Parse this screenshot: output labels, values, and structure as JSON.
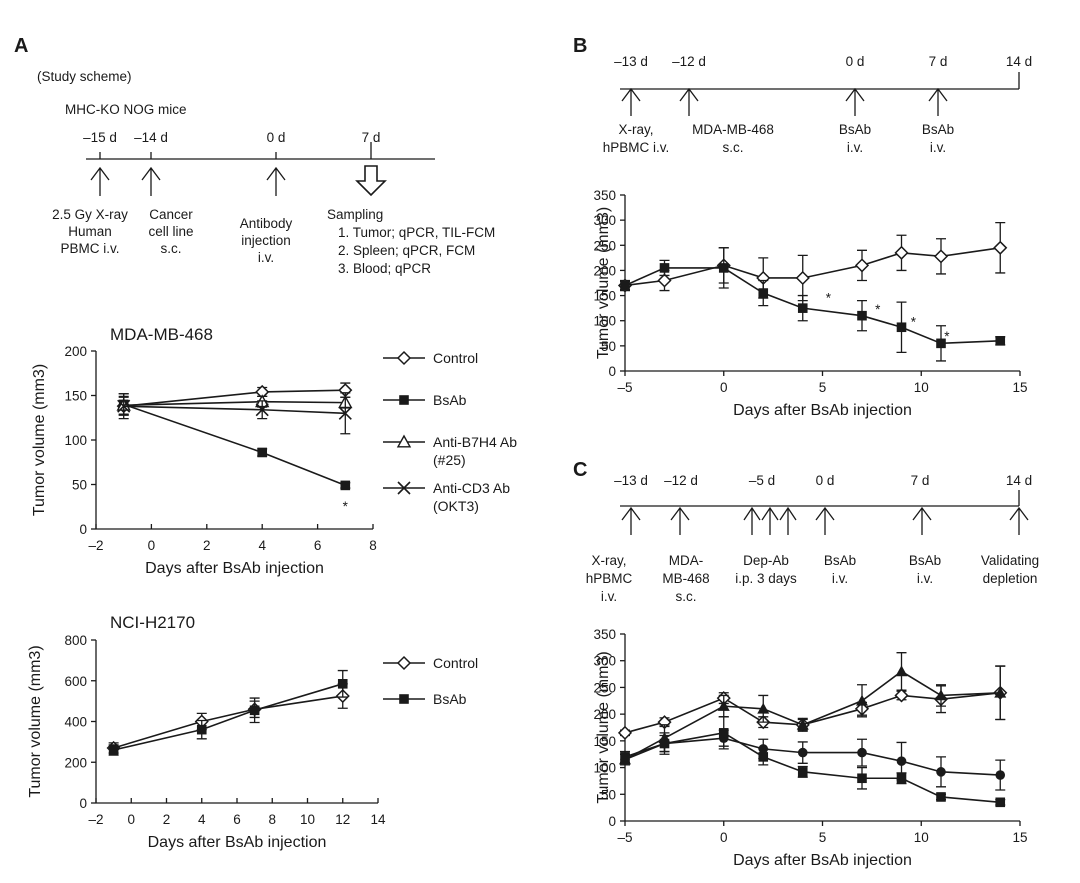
{
  "panels": {
    "a": "A",
    "b": "B",
    "c": "C"
  },
  "scheme_a": {
    "title": "(Study scheme)",
    "mice": "MHC-KO NOG mice",
    "days": [
      "–15 d",
      "–14 d",
      "0 d",
      "7 d"
    ],
    "events": [
      [
        "2.5 Gy X-ray",
        "Human",
        "PBMC i.v."
      ],
      [
        "Cancer",
        "cell line",
        "s.c."
      ],
      [
        "Antibody",
        "injection",
        "i.v."
      ],
      [
        "Sampling",
        "1. Tumor; qPCR, TIL-FCM",
        "2. Spleen; qPCR, FCM",
        "3. Blood; qPCR"
      ]
    ]
  },
  "scheme_b": {
    "days": [
      "–13 d",
      "–12 d",
      "0 d",
      "7 d",
      "14 d"
    ],
    "events": [
      [
        "X-ray,",
        "hPBMC i.v."
      ],
      [
        "MDA-MB-468",
        "s.c."
      ],
      [
        "BsAb",
        "i.v."
      ],
      [
        "BsAb",
        "i.v."
      ]
    ]
  },
  "scheme_c": {
    "days": [
      "–13 d",
      "–12 d",
      "–5 d",
      "0 d",
      "7 d",
      "14 d"
    ],
    "events": [
      [
        "X-ray,",
        "hPBMC",
        "i.v."
      ],
      [
        "MDA-",
        "MB-468",
        "s.c."
      ],
      [
        "Dep-Ab",
        "i.p. 3 days"
      ],
      [
        "BsAb",
        "i.v."
      ],
      [
        "BsAb",
        "i.v."
      ],
      [
        "Validating",
        "depletion"
      ]
    ]
  },
  "chart_data": [
    {
      "id": "a1",
      "type": "line",
      "title": "MDA-MB-468",
      "xlabel": "Days after BsAb injection",
      "ylabel": "Tumor volume (mm3)",
      "xlim": [
        -2,
        8
      ],
      "ylim": [
        0,
        200
      ],
      "xticks": [
        "–2",
        "0",
        "2",
        "4",
        "6",
        "8"
      ],
      "yticks": [
        "0",
        "50",
        "100",
        "150",
        "200"
      ],
      "legend": "right",
      "series": [
        {
          "name": "Control",
          "marker": "diamond-open",
          "x": [
            -1,
            4,
            7
          ],
          "y": [
            138,
            154,
            156
          ],
          "err": [
            14,
            5,
            8
          ]
        },
        {
          "name": "BsAb",
          "marker": "square-filled",
          "x": [
            -1,
            4,
            7
          ],
          "y": [
            140,
            86,
            49
          ],
          "err": [
            12,
            4,
            3
          ]
        },
        {
          "name": "Anti-B7H4 Ab (#25)",
          "marker": "triangle-open",
          "x": [
            -1,
            4,
            7
          ],
          "y": [
            139,
            143,
            142
          ],
          "err": [
            10,
            6,
            6
          ]
        },
        {
          "name": "Anti-CD3 Ab (OKT3)",
          "marker": "x",
          "x": [
            -1,
            4,
            7
          ],
          "y": [
            138,
            134,
            130
          ],
          "err": [
            10,
            10,
            23
          ]
        }
      ],
      "annotations": [
        {
          "text": "*",
          "x": 7,
          "y": 27
        }
      ]
    },
    {
      "id": "a2",
      "type": "line",
      "title": "NCI-H2170",
      "xlabel": "Days after BsAb injection",
      "ylabel": "Tumor volume (mm3)",
      "xlim": [
        -2,
        14
      ],
      "ylim": [
        0,
        800
      ],
      "xticks": [
        "–2",
        "0",
        "2",
        "4",
        "6",
        "8",
        "10",
        "12",
        "14"
      ],
      "yticks": [
        "0",
        "200",
        "400",
        "600",
        "800"
      ],
      "legend": "right",
      "series": [
        {
          "name": "Control",
          "marker": "diamond-open",
          "x": [
            -1,
            4,
            7,
            12
          ],
          "y": [
            270,
            400,
            460,
            525
          ],
          "err": [
            25,
            40,
            40,
            60
          ]
        },
        {
          "name": "BsAb",
          "marker": "square-filled",
          "x": [
            -1,
            4,
            7,
            12
          ],
          "y": [
            260,
            360,
            455,
            585
          ],
          "err": [
            25,
            45,
            60,
            65
          ]
        }
      ]
    },
    {
      "id": "b",
      "type": "line",
      "xlabel": "Days after BsAb injection",
      "ylabel": "Tumor volume (mm3)",
      "xlim": [
        -5,
        15
      ],
      "ylim": [
        0,
        350
      ],
      "xticks": [
        "–5",
        "0",
        "5",
        "10",
        "15"
      ],
      "yticks": [
        "0",
        "50",
        "100",
        "150",
        "200",
        "250",
        "300",
        "350"
      ],
      "series": [
        {
          "marker": "diamond-open",
          "x": [
            -5,
            -3,
            0,
            2,
            4,
            7,
            9,
            11,
            14
          ],
          "y": [
            170,
            180,
            210,
            185,
            185,
            210,
            235,
            228,
            245
          ],
          "err": [
            10,
            20,
            35,
            40,
            45,
            30,
            35,
            35,
            50
          ]
        },
        {
          "marker": "square-filled",
          "x": [
            -5,
            -3,
            0,
            2,
            4,
            7,
            9,
            11,
            14
          ],
          "y": [
            170,
            205,
            205,
            155,
            125,
            110,
            87,
            55,
            60
          ],
          "err": [
            8,
            15,
            40,
            25,
            25,
            30,
            50,
            35,
            8
          ]
        }
      ],
      "annotations": [
        {
          "text": "*",
          "x": 5.3,
          "y": 148
        },
        {
          "text": "*",
          "x": 7.8,
          "y": 125
        },
        {
          "text": "*",
          "x": 9.6,
          "y": 100
        },
        {
          "text": "*",
          "x": 11.3,
          "y": 72
        }
      ]
    },
    {
      "id": "c",
      "type": "line",
      "xlabel": "Days after BsAb injection",
      "ylabel": "Tumor volume (mm3)",
      "xlim": [
        -5,
        15
      ],
      "ylim": [
        0,
        350
      ],
      "xticks": [
        "–5",
        "0",
        "5",
        "10",
        "15"
      ],
      "yticks": [
        "0",
        "50",
        "100",
        "150",
        "200",
        "250",
        "300",
        "350"
      ],
      "series": [
        {
          "marker": "diamond-open",
          "x": [
            -5,
            -3,
            0,
            2,
            4,
            7,
            9,
            11,
            14
          ],
          "y": [
            165,
            185,
            230,
            185,
            180,
            210,
            235,
            228,
            240
          ],
          "err": [
            5,
            8,
            10,
            10,
            10,
            12,
            8,
            25,
            50
          ]
        },
        {
          "marker": "triangle-filled",
          "x": [
            -5,
            -3,
            0,
            2,
            4,
            7,
            9,
            11,
            14
          ],
          "y": [
            115,
            155,
            215,
            210,
            180,
            225,
            280,
            235,
            240
          ],
          "err": [
            10,
            25,
            20,
            25,
            12,
            30,
            35,
            20,
            50
          ]
        },
        {
          "marker": "circle-filled",
          "x": [
            -5,
            -3,
            0,
            2,
            4,
            7,
            9,
            11,
            14
          ],
          "y": [
            115,
            145,
            155,
            135,
            128,
            128,
            112,
            92,
            86
          ],
          "err": [
            10,
            15,
            15,
            18,
            20,
            25,
            35,
            28,
            28
          ]
        },
        {
          "marker": "square-filled",
          "x": [
            -5,
            -3,
            0,
            2,
            4,
            7,
            9,
            11,
            14
          ],
          "y": [
            120,
            145,
            165,
            120,
            92,
            80,
            80,
            45,
            35
          ],
          "err": [
            10,
            20,
            30,
            15,
            10,
            20,
            10,
            5,
            5
          ]
        }
      ]
    }
  ]
}
